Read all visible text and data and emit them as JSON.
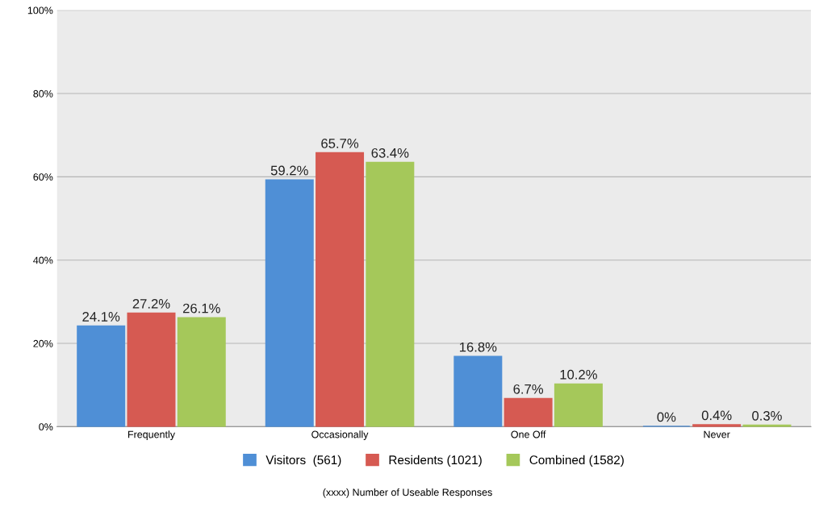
{
  "chart_data": {
    "type": "bar",
    "categories": [
      "Frequently",
      "Occasionally",
      "One Off",
      "Never"
    ],
    "series": [
      {
        "name": "Visitors  (561)",
        "color": "#4f8fd6",
        "values": [
          24.1,
          59.2,
          16.8,
          0
        ],
        "value_labels": [
          "24.1%",
          "59.2%",
          "16.8%",
          "0%"
        ]
      },
      {
        "name": "Residents (1021)",
        "color": "#d65a52",
        "values": [
          27.2,
          65.7,
          6.7,
          0.4
        ],
        "value_labels": [
          "27.2%",
          "65.7%",
          "6.7%",
          "0.4%"
        ]
      },
      {
        "name": "Combined (1582)",
        "color": "#a5c85a",
        "values": [
          26.1,
          63.4,
          10.2,
          0.3
        ],
        "value_labels": [
          "26.1%",
          "63.4%",
          "10.2%",
          "0.3%"
        ]
      }
    ],
    "ylim": [
      0,
      100
    ],
    "yticks": [
      {
        "value": 0,
        "label": "0%"
      },
      {
        "value": 20,
        "label": "20%"
      },
      {
        "value": 40,
        "label": "40%"
      },
      {
        "value": 60,
        "label": "60%"
      },
      {
        "value": 80,
        "label": "80%"
      },
      {
        "value": 100,
        "label": "100%"
      }
    ],
    "grid": "y",
    "legend": "bottom",
    "annotations": [
      "(xxxx) Number of Useable Responses"
    ]
  }
}
